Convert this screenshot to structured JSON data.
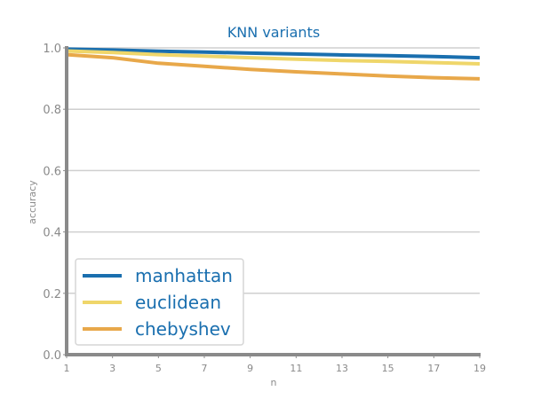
{
  "chart_data": {
    "type": "line",
    "title": "KNN variants",
    "xlabel": "n",
    "ylabel": "accuracy",
    "x": [
      1,
      3,
      5,
      7,
      9,
      11,
      13,
      15,
      17,
      19
    ],
    "xticks": [
      "1",
      "3",
      "5",
      "7",
      "9",
      "11",
      "13",
      "15",
      "17",
      "19"
    ],
    "yticks": [
      "0.0",
      "0.2",
      "0.4",
      "0.6",
      "0.8",
      "1.0"
    ],
    "xlim": [
      1,
      19
    ],
    "ylim": [
      0,
      1
    ],
    "grid": "horizontal",
    "legend_position": "bottom-left",
    "series": [
      {
        "name": "manhattan",
        "color": "#1a6faf",
        "values": [
          0.996,
          0.993,
          0.989,
          0.986,
          0.983,
          0.98,
          0.977,
          0.975,
          0.972,
          0.968
        ]
      },
      {
        "name": "euclidean",
        "color": "#efd66a",
        "values": [
          0.99,
          0.985,
          0.978,
          0.973,
          0.968,
          0.963,
          0.959,
          0.956,
          0.952,
          0.948
        ]
      },
      {
        "name": "chebyshev",
        "color": "#e8a84a",
        "values": [
          0.978,
          0.968,
          0.95,
          0.94,
          0.93,
          0.922,
          0.915,
          0.908,
          0.903,
          0.899
        ]
      }
    ]
  }
}
